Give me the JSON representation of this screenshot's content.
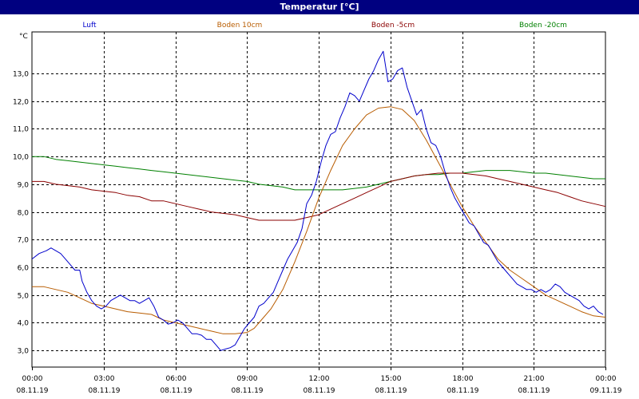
{
  "window": {
    "title": "Temperatur [°C]"
  },
  "colors": {
    "titlebar_bg": "#000080",
    "titlebar_text": "#ffffff",
    "grid": "#000000",
    "background": "#ffffff"
  },
  "chart_data": {
    "type": "line",
    "title": "Temperatur [°C]",
    "ylabel": "°C",
    "xlabel": "",
    "ylim": [
      2.4,
      14.5
    ],
    "xlim": [
      0,
      24
    ],
    "grid": true,
    "legend_placement": "top",
    "y_ticks": [
      {
        "value": 3,
        "label": "3,0"
      },
      {
        "value": 4,
        "label": "4,0"
      },
      {
        "value": 5,
        "label": "5,0"
      },
      {
        "value": 6,
        "label": "6,0"
      },
      {
        "value": 7,
        "label": "7,0"
      },
      {
        "value": 8,
        "label": "8,0"
      },
      {
        "value": 9,
        "label": "9,0"
      },
      {
        "value": 10,
        "label": "10,0"
      },
      {
        "value": 11,
        "label": "11,0"
      },
      {
        "value": 12,
        "label": "12,0"
      },
      {
        "value": 13,
        "label": "13,0"
      }
    ],
    "x_ticks": [
      {
        "value": 0,
        "time": "00:00",
        "date": "08.11.19"
      },
      {
        "value": 3,
        "time": "03:00",
        "date": "08.11.19"
      },
      {
        "value": 6,
        "time": "06:00",
        "date": "08.11.19"
      },
      {
        "value": 9,
        "time": "09:00",
        "date": "08.11.19"
      },
      {
        "value": 12,
        "time": "12:00",
        "date": "08.11.19"
      },
      {
        "value": 15,
        "time": "15:00",
        "date": "08.11.19"
      },
      {
        "value": 18,
        "time": "18:00",
        "date": "08.11.19"
      },
      {
        "value": 21,
        "time": "21:00",
        "date": "08.11.19"
      },
      {
        "value": 24,
        "time": "00:00",
        "date": "09.11.19"
      }
    ],
    "series": [
      {
        "name": "Luft",
        "color": "#0000cc",
        "points": [
          [
            0,
            6.3
          ],
          [
            0.3,
            6.5
          ],
          [
            0.6,
            6.6
          ],
          [
            0.8,
            6.7
          ],
          [
            1.0,
            6.6
          ],
          [
            1.2,
            6.5
          ],
          [
            1.4,
            6.3
          ],
          [
            1.6,
            6.1
          ],
          [
            1.8,
            5.9
          ],
          [
            2.0,
            5.9
          ],
          [
            2.1,
            5.5
          ],
          [
            2.3,
            5.1
          ],
          [
            2.5,
            4.8
          ],
          [
            2.7,
            4.6
          ],
          [
            2.9,
            4.5
          ],
          [
            3.1,
            4.6
          ],
          [
            3.3,
            4.8
          ],
          [
            3.5,
            4.9
          ],
          [
            3.7,
            5.0
          ],
          [
            3.9,
            4.9
          ],
          [
            4.1,
            4.8
          ],
          [
            4.3,
            4.8
          ],
          [
            4.5,
            4.7
          ],
          [
            4.7,
            4.8
          ],
          [
            4.9,
            4.9
          ],
          [
            5.1,
            4.6
          ],
          [
            5.3,
            4.2
          ],
          [
            5.5,
            4.1
          ],
          [
            5.7,
            3.95
          ],
          [
            5.9,
            4.0
          ],
          [
            6.1,
            4.1
          ],
          [
            6.3,
            4.0
          ],
          [
            6.5,
            3.8
          ],
          [
            6.7,
            3.6
          ],
          [
            6.9,
            3.6
          ],
          [
            7.1,
            3.55
          ],
          [
            7.3,
            3.4
          ],
          [
            7.5,
            3.4
          ],
          [
            7.7,
            3.2
          ],
          [
            7.9,
            3.0
          ],
          [
            8.1,
            3.05
          ],
          [
            8.3,
            3.1
          ],
          [
            8.5,
            3.2
          ],
          [
            8.7,
            3.5
          ],
          [
            8.9,
            3.8
          ],
          [
            9.1,
            4.0
          ],
          [
            9.3,
            4.2
          ],
          [
            9.5,
            4.6
          ],
          [
            9.7,
            4.7
          ],
          [
            9.9,
            4.9
          ],
          [
            10.1,
            5.1
          ],
          [
            10.3,
            5.5
          ],
          [
            10.5,
            5.9
          ],
          [
            10.7,
            6.3
          ],
          [
            10.9,
            6.6
          ],
          [
            11.1,
            6.9
          ],
          [
            11.3,
            7.4
          ],
          [
            11.5,
            8.3
          ],
          [
            11.7,
            8.6
          ],
          [
            11.9,
            9.1
          ],
          [
            12.1,
            9.8
          ],
          [
            12.3,
            10.4
          ],
          [
            12.5,
            10.8
          ],
          [
            12.7,
            10.9
          ],
          [
            12.9,
            11.4
          ],
          [
            13.1,
            11.8
          ],
          [
            13.3,
            12.3
          ],
          [
            13.5,
            12.2
          ],
          [
            13.7,
            12.0
          ],
          [
            13.9,
            12.4
          ],
          [
            14.1,
            12.8
          ],
          [
            14.3,
            13.1
          ],
          [
            14.5,
            13.5
          ],
          [
            14.7,
            13.8
          ],
          [
            14.9,
            12.7
          ],
          [
            15.1,
            12.8
          ],
          [
            15.3,
            13.1
          ],
          [
            15.5,
            13.2
          ],
          [
            15.7,
            12.5
          ],
          [
            15.9,
            12.0
          ],
          [
            16.1,
            11.5
          ],
          [
            16.3,
            11.7
          ],
          [
            16.5,
            11.0
          ],
          [
            16.7,
            10.5
          ],
          [
            16.9,
            10.4
          ],
          [
            17.1,
            10.0
          ],
          [
            17.3,
            9.4
          ],
          [
            17.5,
            8.9
          ],
          [
            17.7,
            8.5
          ],
          [
            17.9,
            8.2
          ],
          [
            18.1,
            7.9
          ],
          [
            18.3,
            7.6
          ],
          [
            18.5,
            7.5
          ],
          [
            18.7,
            7.2
          ],
          [
            18.9,
            6.9
          ],
          [
            19.1,
            6.8
          ],
          [
            19.3,
            6.5
          ],
          [
            19.5,
            6.2
          ],
          [
            19.7,
            6.0
          ],
          [
            19.9,
            5.8
          ],
          [
            20.1,
            5.6
          ],
          [
            20.3,
            5.4
          ],
          [
            20.5,
            5.3
          ],
          [
            20.7,
            5.2
          ],
          [
            20.9,
            5.2
          ],
          [
            21.1,
            5.1
          ],
          [
            21.3,
            5.2
          ],
          [
            21.5,
            5.1
          ],
          [
            21.7,
            5.2
          ],
          [
            21.9,
            5.4
          ],
          [
            22.1,
            5.3
          ],
          [
            22.3,
            5.1
          ],
          [
            22.5,
            5.0
          ],
          [
            22.7,
            4.9
          ],
          [
            22.9,
            4.8
          ],
          [
            23.1,
            4.6
          ],
          [
            23.3,
            4.5
          ],
          [
            23.5,
            4.6
          ],
          [
            23.7,
            4.4
          ],
          [
            23.9,
            4.3
          ]
        ]
      },
      {
        "name": "Boden 10cm",
        "color": "#b85c00",
        "points": [
          [
            0,
            5.3
          ],
          [
            0.5,
            5.3
          ],
          [
            1.0,
            5.2
          ],
          [
            1.5,
            5.1
          ],
          [
            2.0,
            4.9
          ],
          [
            2.5,
            4.7
          ],
          [
            3.0,
            4.6
          ],
          [
            3.5,
            4.5
          ],
          [
            4.0,
            4.4
          ],
          [
            4.5,
            4.35
          ],
          [
            5.0,
            4.3
          ],
          [
            5.5,
            4.1
          ],
          [
            6.0,
            4.0
          ],
          [
            6.5,
            3.9
          ],
          [
            7.0,
            3.8
          ],
          [
            7.5,
            3.7
          ],
          [
            8.0,
            3.6
          ],
          [
            8.5,
            3.6
          ],
          [
            9.0,
            3.65
          ],
          [
            9.3,
            3.8
          ],
          [
            9.6,
            4.1
          ],
          [
            10.0,
            4.5
          ],
          [
            10.5,
            5.2
          ],
          [
            11.0,
            6.2
          ],
          [
            11.5,
            7.3
          ],
          [
            12.0,
            8.5
          ],
          [
            12.5,
            9.5
          ],
          [
            13.0,
            10.4
          ],
          [
            13.5,
            11.0
          ],
          [
            14.0,
            11.5
          ],
          [
            14.5,
            11.75
          ],
          [
            15.0,
            11.8
          ],
          [
            15.5,
            11.7
          ],
          [
            16.0,
            11.3
          ],
          [
            16.5,
            10.6
          ],
          [
            17.0,
            9.8
          ],
          [
            17.5,
            9.0
          ],
          [
            18.0,
            8.2
          ],
          [
            18.5,
            7.5
          ],
          [
            19.0,
            6.9
          ],
          [
            19.5,
            6.3
          ],
          [
            20.0,
            5.9
          ],
          [
            20.5,
            5.6
          ],
          [
            21.0,
            5.3
          ],
          [
            21.5,
            5.0
          ],
          [
            22.0,
            4.8
          ],
          [
            22.5,
            4.6
          ],
          [
            23.0,
            4.4
          ],
          [
            23.5,
            4.25
          ],
          [
            24.0,
            4.2
          ]
        ]
      },
      {
        "name": "Boden -5cm",
        "color": "#8b0000",
        "points": [
          [
            0,
            9.1
          ],
          [
            0.5,
            9.1
          ],
          [
            1.0,
            9.0
          ],
          [
            1.5,
            8.95
          ],
          [
            2.0,
            8.9
          ],
          [
            2.5,
            8.8
          ],
          [
            3.0,
            8.75
          ],
          [
            3.5,
            8.7
          ],
          [
            4.0,
            8.6
          ],
          [
            4.5,
            8.55
          ],
          [
            5.0,
            8.4
          ],
          [
            5.5,
            8.4
          ],
          [
            6.0,
            8.3
          ],
          [
            6.5,
            8.2
          ],
          [
            7.0,
            8.1
          ],
          [
            7.5,
            8.0
          ],
          [
            8.0,
            7.95
          ],
          [
            8.5,
            7.9
          ],
          [
            9.0,
            7.8
          ],
          [
            9.5,
            7.7
          ],
          [
            10.0,
            7.7
          ],
          [
            10.5,
            7.7
          ],
          [
            11.0,
            7.7
          ],
          [
            11.5,
            7.8
          ],
          [
            12.0,
            7.9
          ],
          [
            12.5,
            8.1
          ],
          [
            13.0,
            8.3
          ],
          [
            13.5,
            8.5
          ],
          [
            14.0,
            8.7
          ],
          [
            14.5,
            8.9
          ],
          [
            15.0,
            9.1
          ],
          [
            15.5,
            9.2
          ],
          [
            16.0,
            9.3
          ],
          [
            16.5,
            9.35
          ],
          [
            17.0,
            9.4
          ],
          [
            17.5,
            9.4
          ],
          [
            18.0,
            9.4
          ],
          [
            18.5,
            9.35
          ],
          [
            19.0,
            9.3
          ],
          [
            19.5,
            9.2
          ],
          [
            20.0,
            9.1
          ],
          [
            20.5,
            9.0
          ],
          [
            21.0,
            8.9
          ],
          [
            21.5,
            8.8
          ],
          [
            22.0,
            8.7
          ],
          [
            22.5,
            8.55
          ],
          [
            23.0,
            8.4
          ],
          [
            23.5,
            8.3
          ],
          [
            24.0,
            8.2
          ]
        ]
      },
      {
        "name": "Boden -20cm",
        "color": "#008000",
        "points": [
          [
            0,
            10.0
          ],
          [
            0.5,
            10.0
          ],
          [
            1.0,
            9.9
          ],
          [
            1.5,
            9.85
          ],
          [
            2.0,
            9.8
          ],
          [
            2.5,
            9.75
          ],
          [
            3.0,
            9.7
          ],
          [
            3.5,
            9.65
          ],
          [
            4.0,
            9.6
          ],
          [
            4.5,
            9.55
          ],
          [
            5.0,
            9.5
          ],
          [
            5.5,
            9.45
          ],
          [
            6.0,
            9.4
          ],
          [
            6.5,
            9.35
          ],
          [
            7.0,
            9.3
          ],
          [
            7.5,
            9.25
          ],
          [
            8.0,
            9.2
          ],
          [
            8.5,
            9.15
          ],
          [
            9.0,
            9.1
          ],
          [
            9.5,
            9.0
          ],
          [
            10.0,
            8.95
          ],
          [
            10.5,
            8.9
          ],
          [
            11.0,
            8.8
          ],
          [
            11.5,
            8.8
          ],
          [
            12.0,
            8.8
          ],
          [
            12.5,
            8.8
          ],
          [
            13.0,
            8.8
          ],
          [
            13.5,
            8.85
          ],
          [
            14.0,
            8.9
          ],
          [
            14.5,
            9.0
          ],
          [
            15.0,
            9.1
          ],
          [
            15.5,
            9.2
          ],
          [
            16.0,
            9.3
          ],
          [
            16.5,
            9.35
          ],
          [
            17.0,
            9.35
          ],
          [
            17.5,
            9.4
          ],
          [
            18.0,
            9.4
          ],
          [
            18.5,
            9.45
          ],
          [
            19.0,
            9.5
          ],
          [
            19.5,
            9.5
          ],
          [
            20.0,
            9.5
          ],
          [
            20.5,
            9.45
          ],
          [
            21.0,
            9.4
          ],
          [
            21.5,
            9.4
          ],
          [
            22.0,
            9.35
          ],
          [
            22.5,
            9.3
          ],
          [
            23.0,
            9.25
          ],
          [
            23.5,
            9.2
          ],
          [
            24.0,
            9.2
          ]
        ]
      }
    ]
  }
}
